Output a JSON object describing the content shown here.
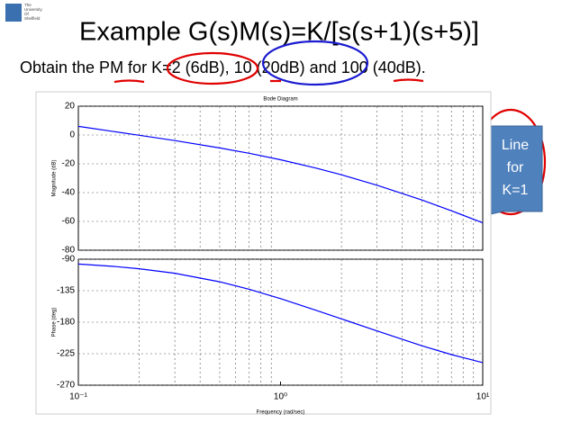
{
  "slide": {
    "title": "Example G(s)M(s)=K/[s(s+1)(s+5)]",
    "subtitle": "Obtain the PM for K=2 (6dB), 10 (20dB) and 100 (40dB).",
    "callout": [
      "Line",
      "for",
      "K=1"
    ],
    "logo": [
      "The",
      "University",
      "Of",
      "Sheffield"
    ]
  },
  "chart_data": [
    {
      "type": "line",
      "title": "Bode Diagram",
      "ylabel": "Magnitude (dB)",
      "xscale": "log",
      "grid": true,
      "color": "#0000ff",
      "x": [
        0.1,
        0.15,
        0.2,
        0.3,
        0.5,
        0.7,
        1,
        1.5,
        2,
        3,
        5,
        7,
        10
      ],
      "values": [
        6.0,
        2.4,
        -0.2,
        -3.9,
        -9.0,
        -12.7,
        -17.2,
        -23.0,
        -27.6,
        -34.9,
        -45.1,
        -52.6,
        -61.0
      ],
      "xlim": [
        0.1,
        10
      ],
      "ylim": [
        -80,
        20
      ],
      "yticks": [
        20,
        0,
        -20,
        -40,
        -60,
        -80
      ],
      "xminorticks": [
        0.2,
        0.3,
        0.4,
        0.5,
        0.6,
        0.7,
        0.8,
        0.9,
        2,
        3,
        4,
        5,
        6,
        7,
        8,
        9
      ]
    },
    {
      "type": "line",
      "ylabel": "Phase (deg)",
      "xlabel": "Frequency  (rad/sec)",
      "xscale": "log",
      "grid": true,
      "color": "#0000ff",
      "x": [
        0.1,
        0.15,
        0.2,
        0.3,
        0.5,
        0.7,
        1,
        1.5,
        2,
        3,
        5,
        7,
        10
      ],
      "values": [
        -96.9,
        -100.3,
        -103.6,
        -110.1,
        -122.3,
        -133.0,
        -146.3,
        -163.0,
        -175.2,
        -192.5,
        -213.7,
        -226.3,
        -237.7
      ],
      "xlim": [
        0.1,
        10
      ],
      "ylim": [
        -270,
        -90
      ],
      "yticks": [
        -90,
        -135,
        -180,
        -225,
        -270
      ],
      "xticks": [
        {
          "value": 0.1,
          "label": "10⁻¹"
        },
        {
          "value": 1,
          "label": "10⁰"
        },
        {
          "value": 10,
          "label": "10¹"
        }
      ],
      "xminorticks": [
        0.2,
        0.3,
        0.4,
        0.5,
        0.6,
        0.7,
        0.8,
        0.9,
        2,
        3,
        4,
        5,
        6,
        7,
        8,
        9
      ]
    }
  ]
}
